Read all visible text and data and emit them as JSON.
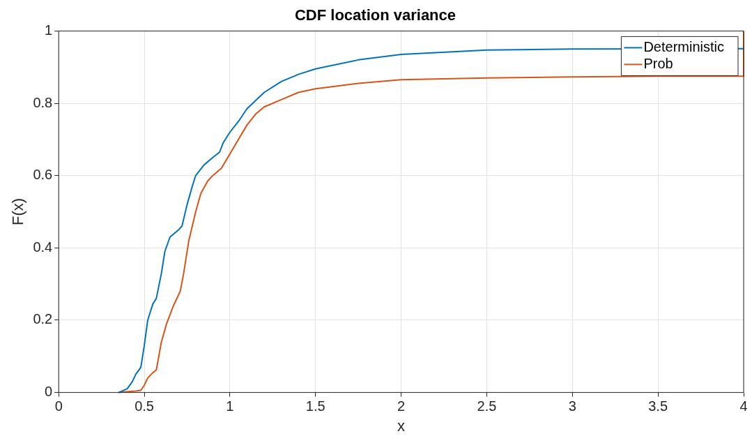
{
  "chart_data": {
    "type": "line",
    "title": "CDF location variance",
    "xlabel": "x",
    "ylabel": "F(x)",
    "xlim": [
      0,
      4
    ],
    "xticks": [
      0,
      0.5,
      1,
      1.5,
      2,
      2.5,
      3,
      3.5,
      4
    ],
    "ylim": [
      0,
      1
    ],
    "yticks": [
      0,
      0.2,
      0.4,
      0.6,
      0.8,
      1
    ],
    "grid": true,
    "legend": "top right",
    "line_style": "solid",
    "marker": "none",
    "series": [
      {
        "name": "Deterministic",
        "color": "#0072bd",
        "x": [
          0.35,
          0.4,
          0.43,
          0.45,
          0.48,
          0.5,
          0.52,
          0.55,
          0.57,
          0.6,
          0.62,
          0.65,
          0.7,
          0.72,
          0.75,
          0.78,
          0.8,
          0.85,
          0.9,
          0.94,
          0.96,
          1,
          1.05,
          1.1,
          1.2,
          1.3,
          1.4,
          1.5,
          1.75,
          2,
          2.5,
          3,
          3.5,
          4
        ],
        "values": [
          0,
          0.01,
          0.03,
          0.05,
          0.07,
          0.13,
          0.2,
          0.245,
          0.26,
          0.33,
          0.39,
          0.43,
          0.45,
          0.46,
          0.52,
          0.57,
          0.6,
          0.63,
          0.65,
          0.665,
          0.69,
          0.72,
          0.75,
          0.785,
          0.83,
          0.86,
          0.88,
          0.895,
          0.92,
          0.935,
          0.947,
          0.95,
          null,
          0.951
        ]
      },
      {
        "name": "Prob",
        "color": "#d95319",
        "x": [
          0.35,
          0.4,
          0.45,
          0.48,
          0.5,
          0.52,
          0.55,
          0.57,
          0.6,
          0.63,
          0.67,
          0.71,
          0.73,
          0.76,
          0.8,
          0.83,
          0.87,
          0.9,
          0.95,
          1,
          1.05,
          1.1,
          1.15,
          1.2,
          1.3,
          1.4,
          1.5,
          1.75,
          2,
          2.5,
          3,
          3.5,
          4,
          4
        ],
        "values": [
          0,
          0.002,
          0.004,
          0.006,
          0.02,
          0.04,
          0.055,
          0.062,
          0.14,
          0.19,
          0.24,
          0.28,
          0.33,
          0.42,
          0.5,
          0.55,
          0.585,
          0.6,
          0.62,
          0.66,
          0.7,
          0.74,
          0.77,
          0.79,
          0.81,
          0.83,
          0.84,
          0.855,
          0.865,
          0.87,
          0.873,
          0.875,
          0.875,
          1
        ]
      }
    ]
  }
}
